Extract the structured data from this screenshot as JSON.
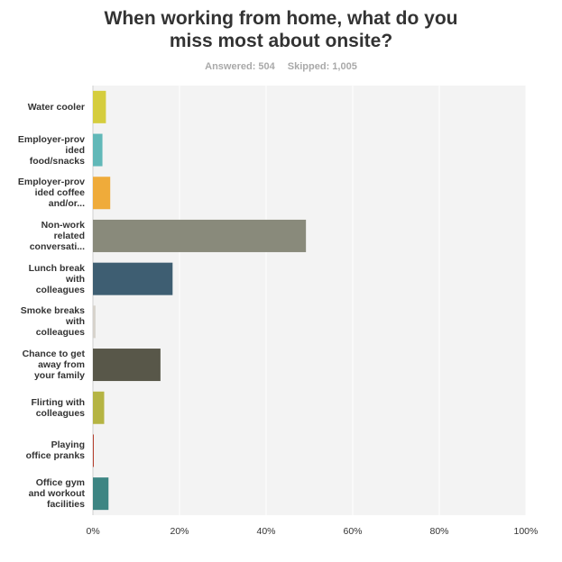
{
  "header": {
    "title_lines": [
      "When working from home, what do you",
      "miss most about onsite?"
    ],
    "answered": "Answered: 504",
    "skipped": "Skipped: 1,005"
  },
  "chart_data": {
    "type": "bar",
    "orientation": "horizontal",
    "categories": [
      [
        "Water cooler"
      ],
      [
        "Employer-prov",
        "ided",
        "food/snacks"
      ],
      [
        "Employer-prov",
        "ided coffee",
        "and/or..."
      ],
      [
        "Non-work",
        "related",
        "conversati..."
      ],
      [
        "Lunch break",
        "with",
        "colleagues"
      ],
      [
        "Smoke breaks",
        "with",
        "colleagues"
      ],
      [
        "Chance to get",
        "away from",
        "your family"
      ],
      [
        "Flirting with",
        "colleagues"
      ],
      [
        "Playing",
        "office pranks"
      ],
      [
        "Office gym",
        "and workout",
        "facilities"
      ]
    ],
    "values": [
      3.0,
      2.2,
      4.0,
      49.2,
      18.4,
      0.6,
      15.6,
      2.6,
      0.2,
      3.6
    ],
    "colors": [
      "#d5cd3e",
      "#61b8b8",
      "#efab3a",
      "#898a7b",
      "#3e5e72",
      "#d6d2cb",
      "#585749",
      "#b5b443",
      "#b7412f",
      "#3d8583"
    ],
    "xlim": [
      0,
      100
    ],
    "x_ticks": [
      "0%",
      "20%",
      "40%",
      "60%",
      "80%",
      "100%"
    ],
    "grid": true
  }
}
